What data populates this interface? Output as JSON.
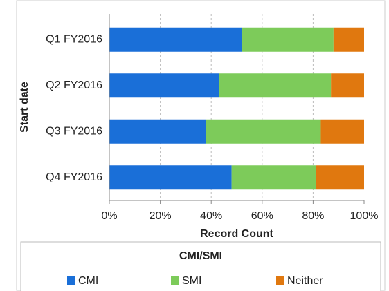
{
  "chart_data": {
    "type": "stacked-bar-horizontal",
    "y_label": "Start date",
    "x_label": "Record Count",
    "legend_title": "CMI/SMI",
    "legend_position": "bottom",
    "categories": [
      "Q1 FY2016",
      "Q2 FY2016",
      "Q3 FY2016",
      "Q4 FY2016"
    ],
    "series": [
      {
        "name": "CMI",
        "color": "#1a6fd8",
        "values": [
          52,
          43,
          38,
          48
        ]
      },
      {
        "name": "SMI",
        "color": "#7dcb5a",
        "values": [
          36,
          44,
          45,
          33
        ]
      },
      {
        "name": "Neither",
        "color": "#e0780f",
        "values": [
          12,
          13,
          17,
          19
        ]
      }
    ],
    "xlim": [
      0,
      100
    ],
    "xticks": [
      {
        "value": 0,
        "label": "0%"
      },
      {
        "value": 20,
        "label": "20%"
      },
      {
        "value": 40,
        "label": "40%"
      },
      {
        "value": 60,
        "label": "60%"
      },
      {
        "value": 80,
        "label": "80%"
      },
      {
        "value": 100,
        "label": "100%"
      }
    ],
    "grid": true
  }
}
